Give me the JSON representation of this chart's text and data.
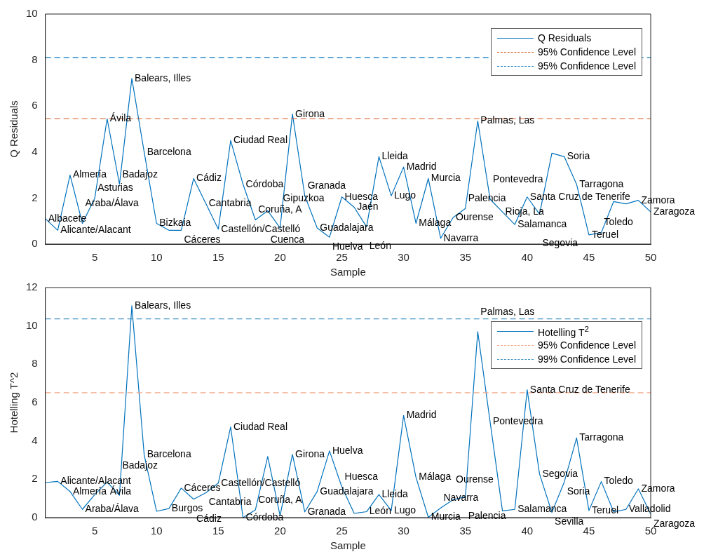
{
  "chart_data": [
    {
      "type": "line",
      "xlabel": "Sample",
      "ylabel": "Q Residuals",
      "x": [
        1,
        2,
        3,
        4,
        5,
        6,
        7,
        8,
        9,
        10,
        11,
        12,
        13,
        14,
        15,
        16,
        17,
        18,
        19,
        20,
        21,
        22,
        23,
        24,
        25,
        26,
        27,
        28,
        29,
        30,
        31,
        32,
        33,
        34,
        35,
        36,
        37,
        38,
        39,
        40,
        41,
        42,
        43,
        44,
        45,
        46,
        47,
        48,
        49,
        50
      ],
      "series": [
        {
          "name": "Q Residuals",
          "color": "#0072bd",
          "values": [
            1.1,
            0.6,
            3.0,
            0.9,
            2.0,
            5.45,
            2.6,
            7.2,
            4.0,
            0.9,
            0.6,
            0.6,
            2.85,
            1.75,
            0.65,
            4.5,
            2.6,
            1.05,
            1.45,
            0.7,
            5.65,
            2.1,
            0.7,
            0.3,
            2.05,
            1.6,
            0.75,
            3.8,
            2.1,
            3.35,
            0.9,
            2.85,
            0.25,
            1.15,
            1.55,
            5.35,
            1.95,
            1.4,
            0.85,
            2.05,
            1.3,
            3.95,
            3.8,
            2.6,
            0.4,
            0.5,
            1.85,
            1.75,
            1.9,
            1.4
          ]
        }
      ],
      "ref_lines": [
        {
          "axis": "y",
          "value": 5.45,
          "label": "95% Confidence Level",
          "color": "#d95319",
          "line_style": "dashed"
        },
        {
          "axis": "y",
          "value": 8.1,
          "label": "95% Confidence Level",
          "color": "#0072bd",
          "line_style": "dashed"
        }
      ],
      "xlim": [
        1,
        50
      ],
      "xticks": [
        5,
        10,
        15,
        20,
        25,
        30,
        35,
        40,
        45,
        50
      ],
      "ylim": [
        0,
        10
      ],
      "yticks": [
        0,
        2,
        4,
        6,
        8,
        10
      ],
      "grid": false,
      "legend": "top right",
      "annotations": [
        {
          "text": "Albacete",
          "x": 1,
          "y": 1.1
        },
        {
          "text": "Alicante/Alacant",
          "x": 2,
          "y": 0.6
        },
        {
          "text": "Almería",
          "x": 3,
          "y": 3.0
        },
        {
          "text": "Araba/Álava",
          "x": 4,
          "y": 0.9
        },
        {
          "text": "Asturias",
          "x": 5,
          "y": 2.0
        },
        {
          "text": "Ávila",
          "x": 6,
          "y": 5.45
        },
        {
          "text": "Badajoz",
          "x": 7,
          "y": 2.6
        },
        {
          "text": "Balears, Illes",
          "x": 8,
          "y": 7.2
        },
        {
          "text": "Barcelona",
          "x": 9,
          "y": 4.0
        },
        {
          "text": "Bizkaia",
          "x": 10,
          "y": 0.9
        },
        {
          "text": "Cáceres",
          "x": 12,
          "y": 0.6
        },
        {
          "text": "Cádiz",
          "x": 13,
          "y": 2.85
        },
        {
          "text": "Cantabria",
          "x": 14,
          "y": 1.75
        },
        {
          "text": "Castellón/Castelló",
          "x": 15,
          "y": 0.65
        },
        {
          "text": "Ciudad Real",
          "x": 16,
          "y": 4.5
        },
        {
          "text": "Córdoba",
          "x": 17,
          "y": 2.6
        },
        {
          "text": "Coruña, A",
          "x": 18,
          "y": 1.05
        },
        {
          "text": "Cuenca",
          "x": 19,
          "y": 1.45
        },
        {
          "text": "Gipuzkoa",
          "x": 20,
          "y": 0.7
        },
        {
          "text": "Girona",
          "x": 21,
          "y": 5.65
        },
        {
          "text": "Granada",
          "x": 22,
          "y": 2.1
        },
        {
          "text": "Guadalajara",
          "x": 23,
          "y": 0.7
        },
        {
          "text": "Huelva",
          "x": 24,
          "y": 0.3
        },
        {
          "text": "Huesca",
          "x": 25,
          "y": 2.05
        },
        {
          "text": "Jaén",
          "x": 26,
          "y": 1.6
        },
        {
          "text": "León",
          "x": 27,
          "y": 0.75
        },
        {
          "text": "Lleida",
          "x": 28,
          "y": 3.8
        },
        {
          "text": "Lugo",
          "x": 29,
          "y": 2.1
        },
        {
          "text": "Madrid",
          "x": 30,
          "y": 3.35
        },
        {
          "text": "Málaga",
          "x": 31,
          "y": 0.9
        },
        {
          "text": "Murcia",
          "x": 32,
          "y": 2.85
        },
        {
          "text": "Navarra",
          "x": 33,
          "y": 0.25
        },
        {
          "text": "Ourense",
          "x": 34,
          "y": 1.15
        },
        {
          "text": "Palencia",
          "x": 35,
          "y": 1.55
        },
        {
          "text": "Palmas, Las",
          "x": 36,
          "y": 5.35
        },
        {
          "text": "Pontevedra",
          "x": 37,
          "y": 1.95
        },
        {
          "text": "Rioja, La",
          "x": 38,
          "y": 1.4
        },
        {
          "text": "Salamanca",
          "x": 39,
          "y": 0.85
        },
        {
          "text": "Santa Cruz de Tenerife",
          "x": 40,
          "y": 2.05
        },
        {
          "text": "Segovia",
          "x": 41,
          "y": 1.3
        },
        {
          "text": "Soria",
          "x": 43,
          "y": 3.8
        },
        {
          "text": "Tarragona",
          "x": 44,
          "y": 2.6
        },
        {
          "text": "Teruel",
          "x": 45,
          "y": 0.4
        },
        {
          "text": "Toledo",
          "x": 46,
          "y": 0.5
        },
        {
          "text": "Zamora",
          "x": 49,
          "y": 1.9
        },
        {
          "text": "Zaragoza",
          "x": 50,
          "y": 1.4
        }
      ]
    },
    {
      "type": "line",
      "xlabel": "Sample",
      "ylabel": "Hotelling T^2",
      "x": [
        1,
        2,
        3,
        4,
        5,
        6,
        7,
        8,
        9,
        10,
        11,
        12,
        13,
        14,
        15,
        16,
        17,
        18,
        19,
        20,
        21,
        22,
        23,
        24,
        25,
        26,
        27,
        28,
        29,
        30,
        31,
        32,
        33,
        34,
        35,
        36,
        37,
        38,
        39,
        40,
        41,
        42,
        43,
        44,
        45,
        46,
        47,
        48,
        49,
        50
      ],
      "series": [
        {
          "name": "Hotelling T$^{2}$",
          "color": "#0072bd",
          "values": [
            1.83,
            1.89,
            1.36,
            0.43,
            1.2,
            1.85,
            1.17,
            11.05,
            3.27,
            0.33,
            0.47,
            1.54,
            0.96,
            1.3,
            1.8,
            4.73,
            0.0,
            0.4,
            3.19,
            0.1,
            3.3,
            0.3,
            1.36,
            3.48,
            1.6,
            0.22,
            0.31,
            1.2,
            0.37,
            5.33,
            2.1,
            0.02,
            0.5,
            0.93,
            1.09,
            9.7,
            5.0,
            0.35,
            0.43,
            6.67,
            2.28,
            0.27,
            1.85,
            4.16,
            0.37,
            1.88,
            0.3,
            0.43,
            1.5,
            0.19
          ]
        }
      ],
      "ref_lines": [
        {
          "axis": "y",
          "value": 6.52,
          "label": "95% Confidence Level",
          "color": "#f4a582",
          "line_style": "dashed"
        },
        {
          "axis": "y",
          "value": 10.37,
          "label": "99% Confidence Level",
          "color": "#4393c3",
          "line_style": "dashed"
        }
      ],
      "xlim": [
        1,
        50
      ],
      "xticks": [
        5,
        10,
        15,
        20,
        25,
        30,
        35,
        40,
        45,
        50
      ],
      "ylim": [
        0,
        12
      ],
      "yticks": [
        0,
        2,
        4,
        6,
        8,
        10,
        12
      ],
      "grid": false,
      "legend": "top right",
      "annotations": [
        {
          "text": "Alicante/Alacant",
          "x": 2,
          "y": 1.89
        },
        {
          "text": "Almería",
          "x": 3,
          "y": 1.36
        },
        {
          "text": "Araba/Álava",
          "x": 4,
          "y": 0.43
        },
        {
          "text": "Ávila",
          "x": 6,
          "y": 1.85
        },
        {
          "text": "Badajoz",
          "x": 7,
          "y": 1.17
        },
        {
          "text": "Balears, Illes",
          "x": 8,
          "y": 11.05
        },
        {
          "text": "Barcelona",
          "x": 9,
          "y": 3.27
        },
        {
          "text": "Burgos",
          "x": 11,
          "y": 0.47
        },
        {
          "text": "Cáceres",
          "x": 12,
          "y": 1.54
        },
        {
          "text": "Cádiz",
          "x": 13,
          "y": 0.96
        },
        {
          "text": "Cantabria",
          "x": 14,
          "y": 1.3
        },
        {
          "text": "Castellón/Castelló",
          "x": 15,
          "y": 1.8
        },
        {
          "text": "Ciudad Real",
          "x": 16,
          "y": 4.73
        },
        {
          "text": "Córdoba",
          "x": 17,
          "y": 0.0
        },
        {
          "text": "Coruña, A",
          "x": 18,
          "y": 0.4
        },
        {
          "text": "Girona",
          "x": 21,
          "y": 3.3
        },
        {
          "text": "Granada",
          "x": 22,
          "y": 0.3
        },
        {
          "text": "Guadalajara",
          "x": 23,
          "y": 1.36
        },
        {
          "text": "Huelva",
          "x": 24,
          "y": 3.48
        },
        {
          "text": "Huesca",
          "x": 25,
          "y": 1.6
        },
        {
          "text": "León",
          "x": 27,
          "y": 0.31
        },
        {
          "text": "Lleida",
          "x": 28,
          "y": 1.2
        },
        {
          "text": "Lugo",
          "x": 29,
          "y": 0.37
        },
        {
          "text": "Madrid",
          "x": 30,
          "y": 5.33
        },
        {
          "text": "Málaga",
          "x": 31,
          "y": 2.1
        },
        {
          "text": "Murcia",
          "x": 32,
          "y": 0.02
        },
        {
          "text": "Navarra",
          "x": 33,
          "y": 0.5
        },
        {
          "text": "Ourense",
          "x": 34,
          "y": 0.93
        },
        {
          "text": "Palencia",
          "x": 35,
          "y": 1.09
        },
        {
          "text": "Palmas, Las",
          "x": 36,
          "y": 9.7
        },
        {
          "text": "Pontevedra",
          "x": 37,
          "y": 5.0
        },
        {
          "text": "Salamanca",
          "x": 39,
          "y": 0.43
        },
        {
          "text": "Santa Cruz de Tenerife",
          "x": 40,
          "y": 6.67
        },
        {
          "text": "Segovia",
          "x": 41,
          "y": 2.28
        },
        {
          "text": "Sevilla",
          "x": 42,
          "y": 0.27
        },
        {
          "text": "Soria",
          "x": 43,
          "y": 1.85
        },
        {
          "text": "Tarragona",
          "x": 44,
          "y": 4.16
        },
        {
          "text": "Teruel",
          "x": 45,
          "y": 0.37
        },
        {
          "text": "Toledo",
          "x": 46,
          "y": 1.88
        },
        {
          "text": "Valladolid",
          "x": 48,
          "y": 0.43
        },
        {
          "text": "Zamora",
          "x": 49,
          "y": 1.5
        },
        {
          "text": "Zaragoza",
          "x": 50,
          "y": 0.19
        }
      ]
    }
  ]
}
